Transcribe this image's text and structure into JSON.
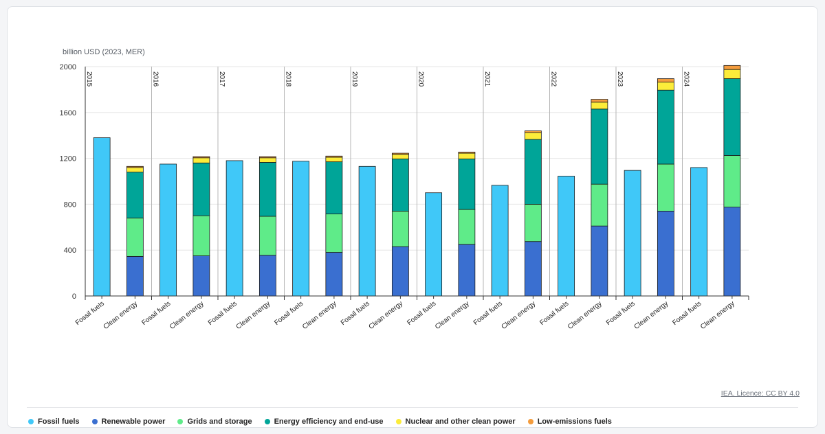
{
  "unit_label": "billion USD (2023, MER)",
  "credit": "IEA. Licence: CC BY 4.0",
  "legend": [
    {
      "name": "Fossil fuels",
      "color": "#40c8f8"
    },
    {
      "name": "Renewable power",
      "color": "#3a6fd0"
    },
    {
      "name": "Grids and storage",
      "color": "#5feb89"
    },
    {
      "name": "Energy efficiency and end-use",
      "color": "#00a598"
    },
    {
      "name": "Nuclear and other clean power",
      "color": "#fcec3a"
    },
    {
      "name": "Low-emissions fuels",
      "color": "#f49c3d"
    }
  ],
  "chart_data": {
    "type": "bar",
    "stacked": true,
    "ylabel": "billion USD (2023, MER)",
    "ylim": [
      0,
      2000
    ],
    "yticks": [
      0,
      400,
      800,
      1200,
      1600,
      2000
    ],
    "years": [
      "2015",
      "2016",
      "2017",
      "2018",
      "2019",
      "2020",
      "2021",
      "2022",
      "2023",
      "2024"
    ],
    "bar_labels": [
      "Fossil fuels",
      "Clean energy"
    ],
    "fossil_fuels": [
      1380,
      1150,
      1180,
      1175,
      1130,
      900,
      965,
      1045,
      1095,
      1120
    ],
    "clean_energy": {
      "Renewable power": [
        345,
        350,
        355,
        380,
        430,
        450,
        475,
        610,
        740,
        775
      ],
      "Grids and storage": [
        335,
        350,
        340,
        335,
        310,
        305,
        325,
        365,
        410,
        450
      ],
      "Energy efficiency and end-use": [
        400,
        460,
        470,
        455,
        455,
        440,
        565,
        655,
        645,
        670
      ],
      "Nuclear and other clean power": [
        40,
        45,
        40,
        40,
        40,
        50,
        60,
        60,
        70,
        80
      ],
      "Low-emissions fuels": [
        10,
        10,
        10,
        10,
        10,
        10,
        15,
        25,
        30,
        35
      ]
    }
  }
}
